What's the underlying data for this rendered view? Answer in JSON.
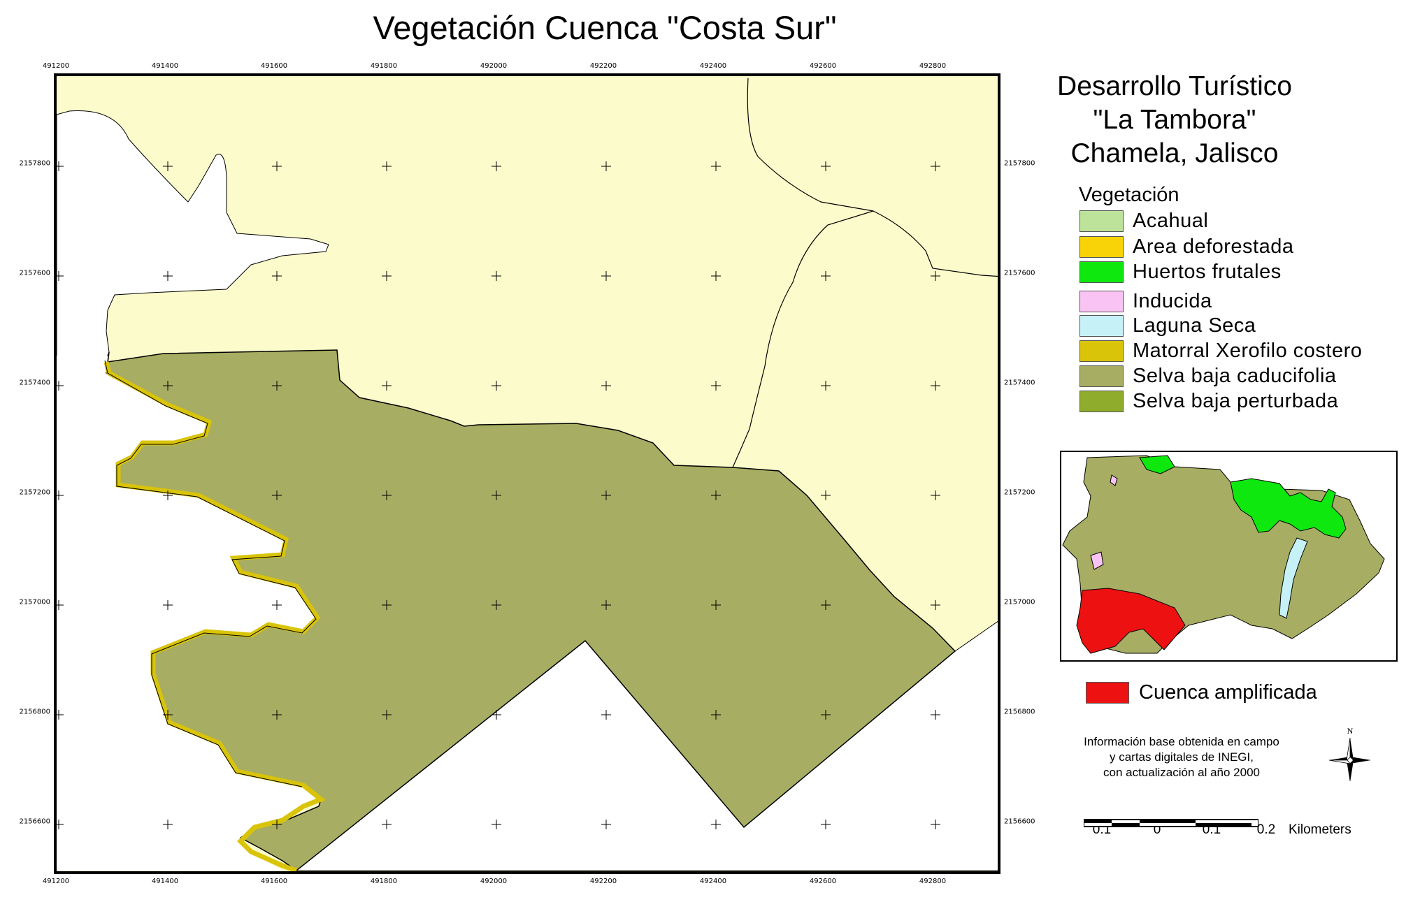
{
  "title": "Vegetación Cuenca \"Costa Sur\"",
  "info": {
    "line1": "Desarrollo Turístico",
    "line2": "\"La Tambora\"",
    "line3": "Chamela, Jalisco"
  },
  "legend": {
    "heading": "Vegetación",
    "items": [
      {
        "label": "Acahual",
        "color": "#bde29a"
      },
      {
        "label": "Area deforestada",
        "color": "#f7d308"
      },
      {
        "label": "Huertos frutales",
        "color": "#0fe80f"
      },
      {
        "label": "Inducida",
        "color": "#f9c4f4"
      },
      {
        "label": "Laguna Seca",
        "color": "#c6f2f7"
      },
      {
        "label": "Matorral Xerofilo costero",
        "color": "#d9c40a"
      },
      {
        "label": "Selva baja caducifolia",
        "color": "#a7ad62"
      },
      {
        "label": "Selva baja perturbada",
        "color": "#8fac2c"
      }
    ]
  },
  "inset_legend": {
    "label": "Cuenca amplificada",
    "color": "#ee1111"
  },
  "source_note": {
    "line1": "Información base obtenida en campo",
    "line2": "y cartas digitales de INEGI,",
    "line3": "con actualización al año 2000"
  },
  "north_label": "N",
  "scale": {
    "labels": [
      "0.1",
      "0",
      "0.1",
      "0.2"
    ],
    "unit": "Kilometers"
  },
  "axes": {
    "x_ticks": [
      "491200",
      "491400",
      "491600",
      "491800",
      "492000",
      "492200",
      "492400",
      "492600",
      "492800"
    ],
    "y_ticks": [
      "2157800",
      "2157600",
      "2157400",
      "2157200",
      "2157000",
      "2156800",
      "2156600"
    ]
  },
  "colors": {
    "background_land": "#fbfbcb",
    "selva_baja_caducifolia": "#a7ad62",
    "matorral_xerofilo_costero": "#d9c40a",
    "outside": "#ffffff"
  }
}
